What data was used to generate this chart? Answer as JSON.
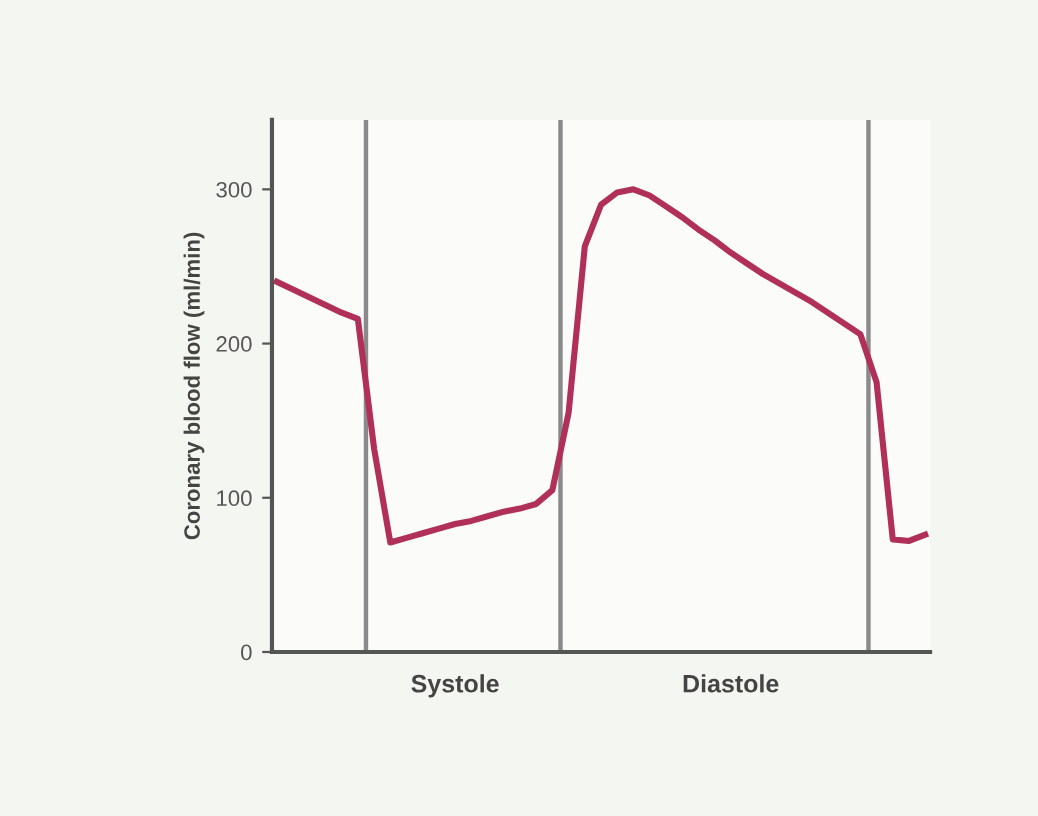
{
  "chart_data": {
    "type": "line",
    "ylabel": "Coronary blood flow (ml/min)",
    "categories": [
      null,
      null,
      null,
      null,
      null,
      null,
      null,
      null,
      null,
      null,
      null,
      "Systole",
      null,
      null,
      null,
      null,
      null,
      null,
      null,
      null,
      null,
      null,
      null,
      null,
      null,
      null,
      null,
      null,
      "Diastole",
      null,
      null,
      null,
      null,
      null,
      null,
      null,
      null,
      null,
      null,
      null,
      null
    ],
    "series": [
      {
        "color": "#b0305a",
        "values": [
          240,
          235,
          230,
          225,
          220,
          216,
          132,
          71,
          74,
          77,
          80,
          83,
          85,
          88,
          91,
          93,
          96,
          105,
          155,
          263,
          290,
          298,
          300,
          296,
          289,
          282,
          274,
          267,
          259,
          252,
          245,
          239,
          233,
          227,
          220,
          213,
          206,
          175,
          73,
          72,
          76
        ]
      }
    ],
    "ylim": [
      0,
      345
    ],
    "yticks": [
      0,
      100,
      200,
      300
    ],
    "grid": false,
    "legend": false,
    "marker": "none",
    "line_style": "solid"
  }
}
